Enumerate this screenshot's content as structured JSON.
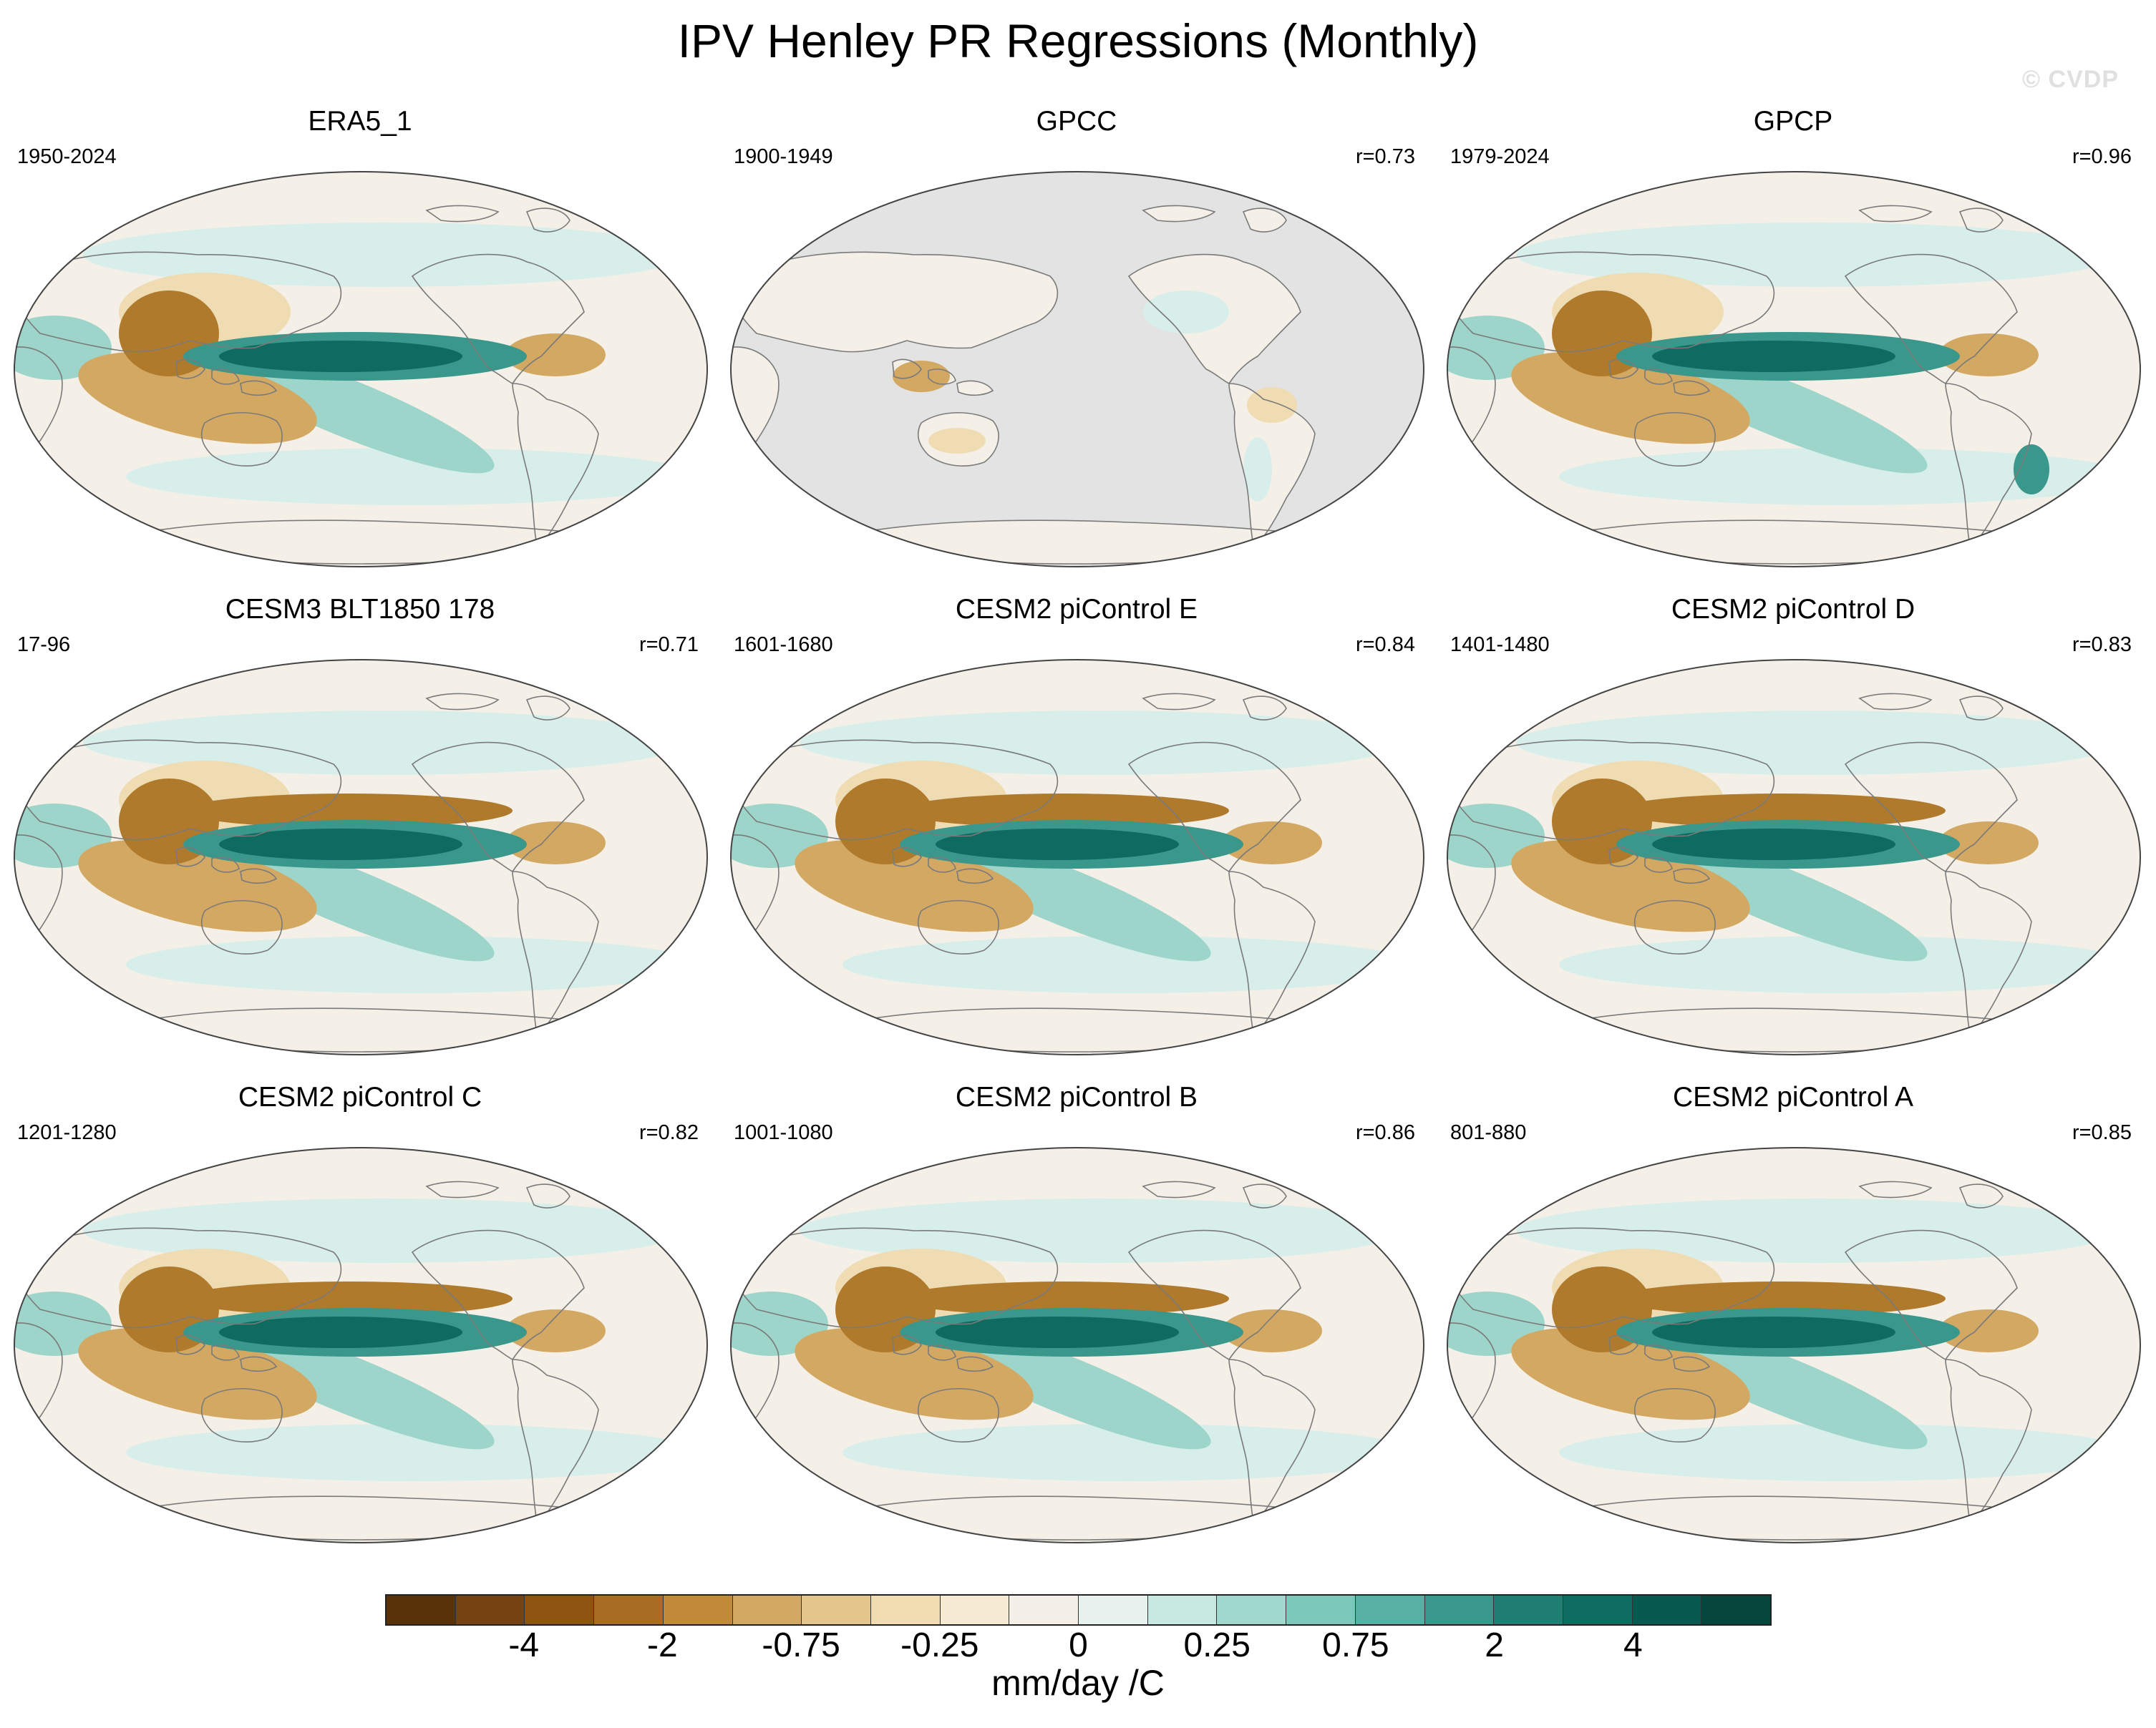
{
  "title": "IPV Henley PR Regressions (Monthly)",
  "watermark": "© CVDP",
  "panels": [
    {
      "title": "ERA5_1",
      "period": "1950-2024",
      "corr": "",
      "pattern": "obs",
      "land_only": false
    },
    {
      "title": "GPCC",
      "period": "1900-1949",
      "corr": "r=0.73",
      "pattern": "gpcc",
      "land_only": true
    },
    {
      "title": "GPCP",
      "period": "1979-2024",
      "corr": "r=0.96",
      "pattern": "gpcp",
      "land_only": false
    },
    {
      "title": "CESM3 BLT1850 178",
      "period": "17-96",
      "corr": "r=0.71",
      "pattern": "model",
      "land_only": false
    },
    {
      "title": "CESM2 piControl E",
      "period": "1601-1680",
      "corr": "r=0.84",
      "pattern": "model",
      "land_only": false
    },
    {
      "title": "CESM2 piControl D",
      "period": "1401-1480",
      "corr": "r=0.83",
      "pattern": "model",
      "land_only": false
    },
    {
      "title": "CESM2 piControl C",
      "period": "1201-1280",
      "corr": "r=0.82",
      "pattern": "model",
      "land_only": false
    },
    {
      "title": "CESM2 piControl B",
      "period": "1001-1080",
      "corr": "r=0.86",
      "pattern": "model",
      "land_only": false
    },
    {
      "title": "CESM2 piControl A",
      "period": "801-880",
      "corr": "r=0.85",
      "pattern": "model",
      "land_only": false
    }
  ],
  "colorbar": {
    "units": "mm/day /C",
    "colors": [
      "#5a3209",
      "#774212",
      "#8e540f",
      "#a86d22",
      "#c08a3a",
      "#d3a862",
      "#e4c68c",
      "#f0dcb0",
      "#f5ebd2",
      "#f4f0e8",
      "#e7f2ef",
      "#c7e8e1",
      "#a0d8cd",
      "#7cc8bb",
      "#56b1a4",
      "#3a978b",
      "#1f7f74",
      "#0e6b5f",
      "#075a4f",
      "#04463c"
    ],
    "labels": [
      "-4",
      "-2",
      "-0.75",
      "-0.25",
      "0",
      "0.25",
      "0.75",
      "2",
      "4"
    ],
    "label_boundaries": [
      2,
      4,
      6,
      8,
      10,
      12,
      14,
      16,
      18
    ]
  },
  "map_colors": {
    "ocean": "#f4f0e8",
    "missing": "#e3e3e3",
    "coast": "#7a7a7a",
    "wet_light": "#d8eeea",
    "wet_mid": "#9dd5ca",
    "wet_strong": "#3a978b",
    "wet_peak": "#0f6b60",
    "dry_light": "#efdcb2",
    "dry_mid": "#d3a862",
    "dry_strong": "#b07a2c"
  }
}
